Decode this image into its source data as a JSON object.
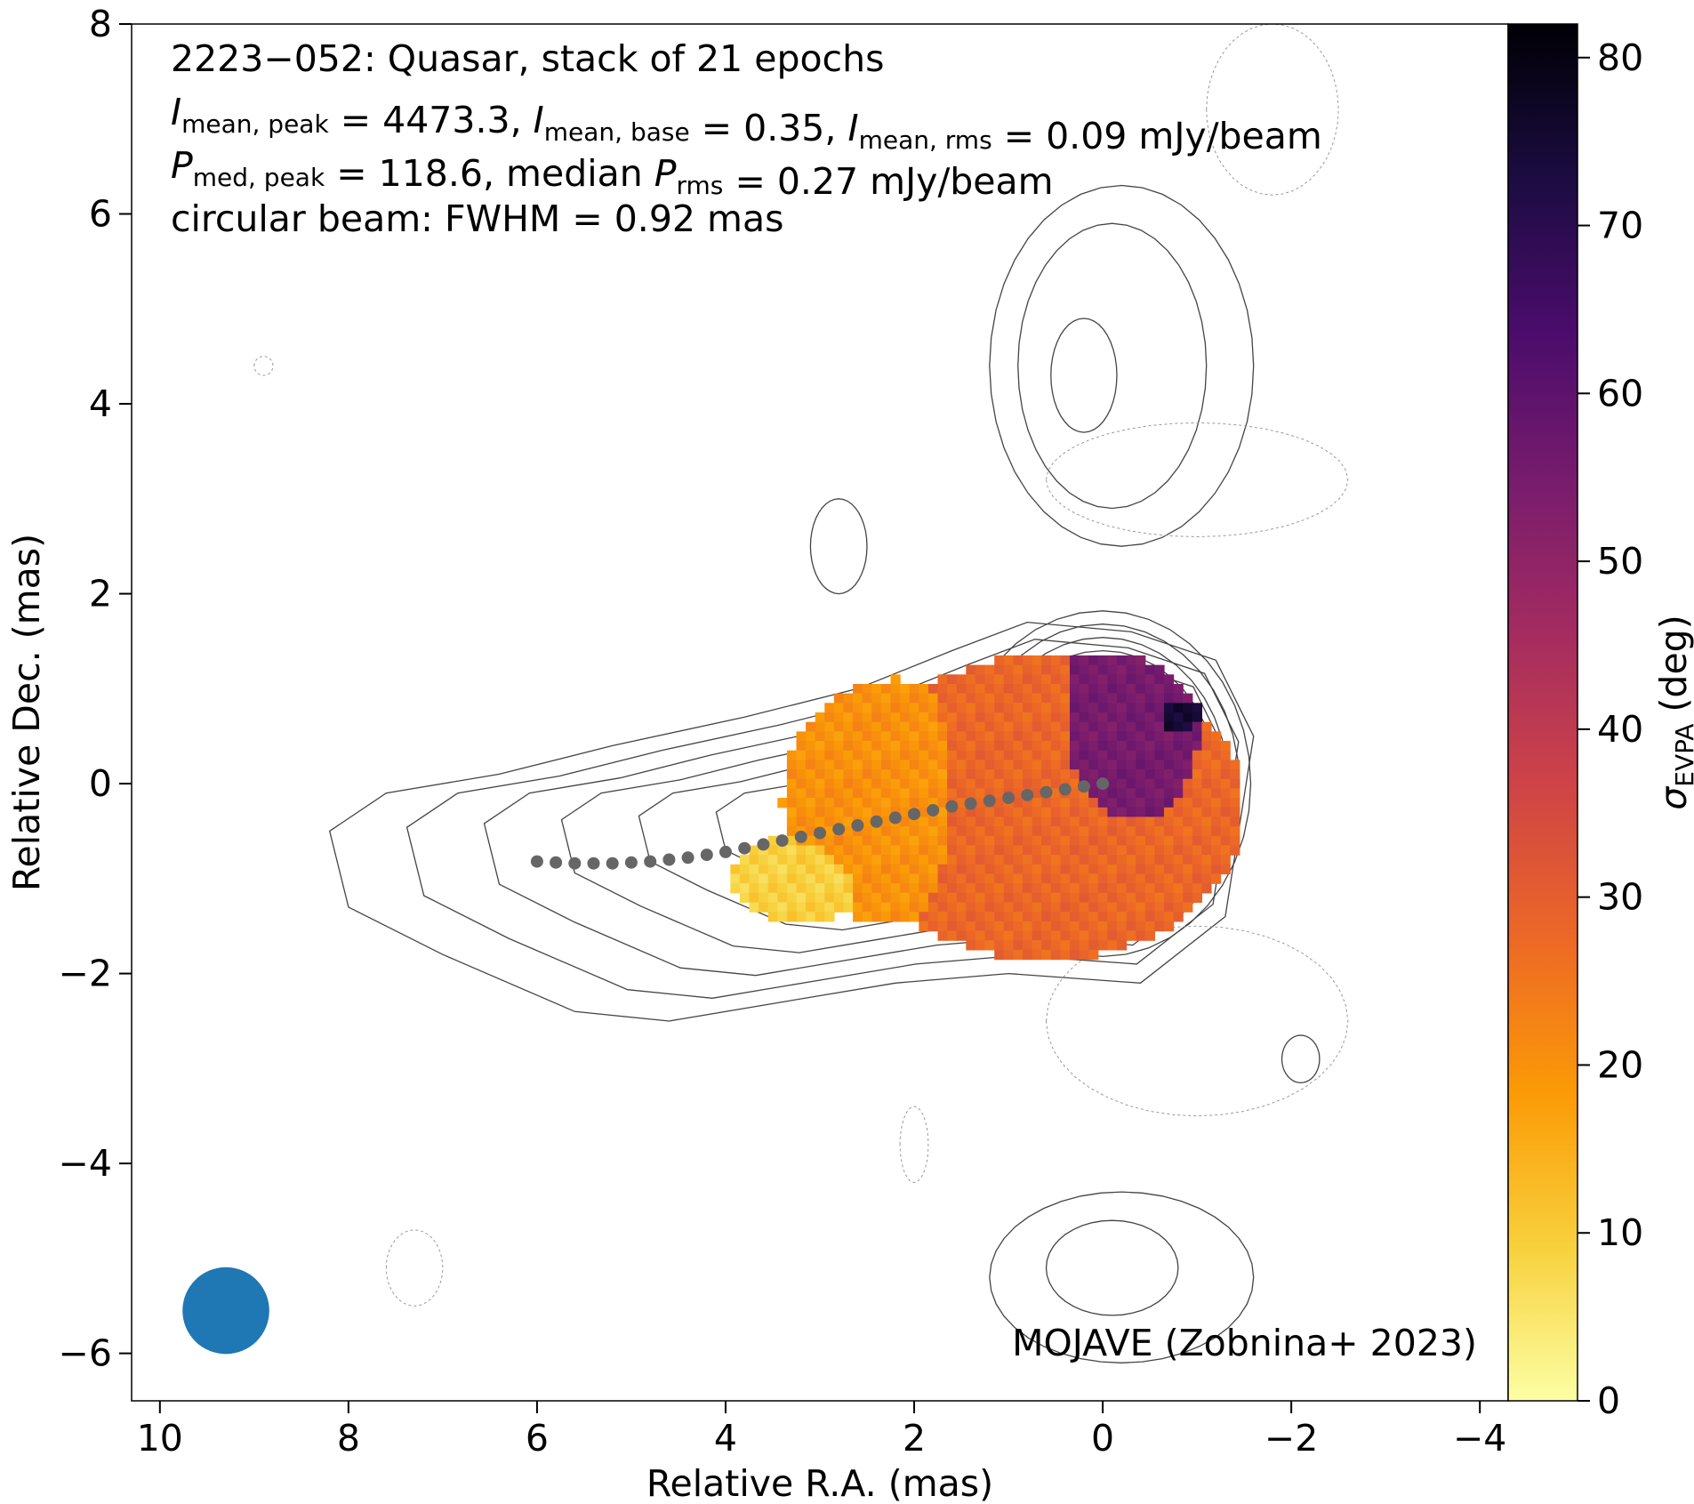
{
  "chart_data": {
    "type": "heatmap",
    "annotation_lines": [
      "2223−052: Quasar, stack of 21 epochs",
      "I_mean,peak = 4473.3, I_mean,base = 0.35, I_mean,rms = 0.09 mJy/beam",
      "P_med,peak = 118.6, median P_rms = 0.27 mJy/beam",
      "circular beam: FWHM = 0.92 mas"
    ],
    "annotation_rich": [
      [
        [
          "t",
          "2223−052: Quasar, stack of 21 epochs"
        ]
      ],
      [
        [
          "i",
          "I"
        ],
        [
          "sub",
          "mean, peak"
        ],
        [
          "t",
          " = 4473.3, "
        ],
        [
          "i",
          "I"
        ],
        [
          "sub",
          "mean, base"
        ],
        [
          "t",
          " = 0.35, "
        ],
        [
          "i",
          "I"
        ],
        [
          "sub",
          "mean, rms"
        ],
        [
          "t",
          " = 0.09 mJy/beam"
        ]
      ],
      [
        [
          "i",
          "P"
        ],
        [
          "sub",
          "med, peak"
        ],
        [
          "t",
          " = 118.6, median "
        ],
        [
          "i",
          "P"
        ],
        [
          "sub",
          "rms"
        ],
        [
          "t",
          " = 0.27 mJy/beam"
        ]
      ],
      [
        [
          "t",
          "circular beam: FWHM = 0.92 mas"
        ]
      ]
    ],
    "credit": "MOJAVE (Zobnina+ 2023)",
    "xlabel": "Relative R.A. (mas)",
    "ylabel": "Relative Dec. (mas)",
    "xlim": [
      10.3,
      -4.3
    ],
    "ylim": [
      -6.5,
      8
    ],
    "xticks": [
      10,
      8,
      6,
      4,
      2,
      0,
      -2,
      -4
    ],
    "xtick_labels": [
      "10",
      "8",
      "6",
      "4",
      "2",
      "0",
      "−2",
      "−4"
    ],
    "yticks": [
      8,
      6,
      4,
      2,
      0,
      -2,
      -4,
      -6
    ],
    "ytick_labels": [
      "8",
      "6",
      "4",
      "2",
      "0",
      "−2",
      "−4",
      "−6"
    ],
    "colorbar": {
      "label": "σ_EVPA (deg)",
      "label_main": "σ",
      "label_sub": "EVPA",
      "label_unit": " (deg)",
      "range": [
        0,
        82
      ],
      "ticks": [
        0,
        10,
        20,
        30,
        40,
        50,
        60,
        70,
        80
      ],
      "colormap": "inferno_r",
      "stops": [
        "#fcffa4",
        "#f7d13d",
        "#fb9b06",
        "#ed6925",
        "#cf4446",
        "#a52c60",
        "#781c6d",
        "#4a0c6b",
        "#1b0c41",
        "#000004"
      ]
    },
    "ridgeline": {
      "color": "#666666",
      "x": [
        6.0,
        5.8,
        5.6,
        5.4,
        5.2,
        5.0,
        4.8,
        4.6,
        4.4,
        4.2,
        4.0,
        3.8,
        3.6,
        3.4,
        3.2,
        3.0,
        2.8,
        2.6,
        2.4,
        2.2,
        2.0,
        1.8,
        1.6,
        1.4,
        1.2,
        1.0,
        0.8,
        0.6,
        0.4,
        0.2,
        0.0
      ],
      "y": [
        -0.82,
        -0.83,
        -0.84,
        -0.84,
        -0.84,
        -0.83,
        -0.82,
        -0.8,
        -0.78,
        -0.75,
        -0.72,
        -0.68,
        -0.64,
        -0.6,
        -0.56,
        -0.52,
        -0.48,
        -0.44,
        -0.4,
        -0.36,
        -0.32,
        -0.28,
        -0.24,
        -0.21,
        -0.18,
        -0.15,
        -0.12,
        -0.09,
        -0.06,
        -0.03,
        0.0
      ]
    },
    "beam": {
      "x": 9.3,
      "y": -5.55,
      "fwhm": 0.92,
      "color": "#1f77b4"
    },
    "sigma_map_regions": [
      {
        "name": "core",
        "x": -0.05,
        "y": 0.1,
        "rx": 1.15,
        "ry": 1.3,
        "value": 55
      },
      {
        "name": "core-outer",
        "x": 0.6,
        "y": -0.25,
        "rx": 2.1,
        "ry": 1.6,
        "value": 28
      },
      {
        "name": "inner-jet",
        "x": 2.2,
        "y": -0.2,
        "rx": 1.2,
        "ry": 1.3,
        "value": 20
      },
      {
        "name": "outer-jet",
        "x": 3.2,
        "y": -1.0,
        "rx": 0.75,
        "ry": 0.45,
        "value": 9
      },
      {
        "name": "northern-edge",
        "x": -0.8,
        "y": 0.7,
        "rx": 0.25,
        "ry": 0.2,
        "value": 75
      }
    ]
  }
}
